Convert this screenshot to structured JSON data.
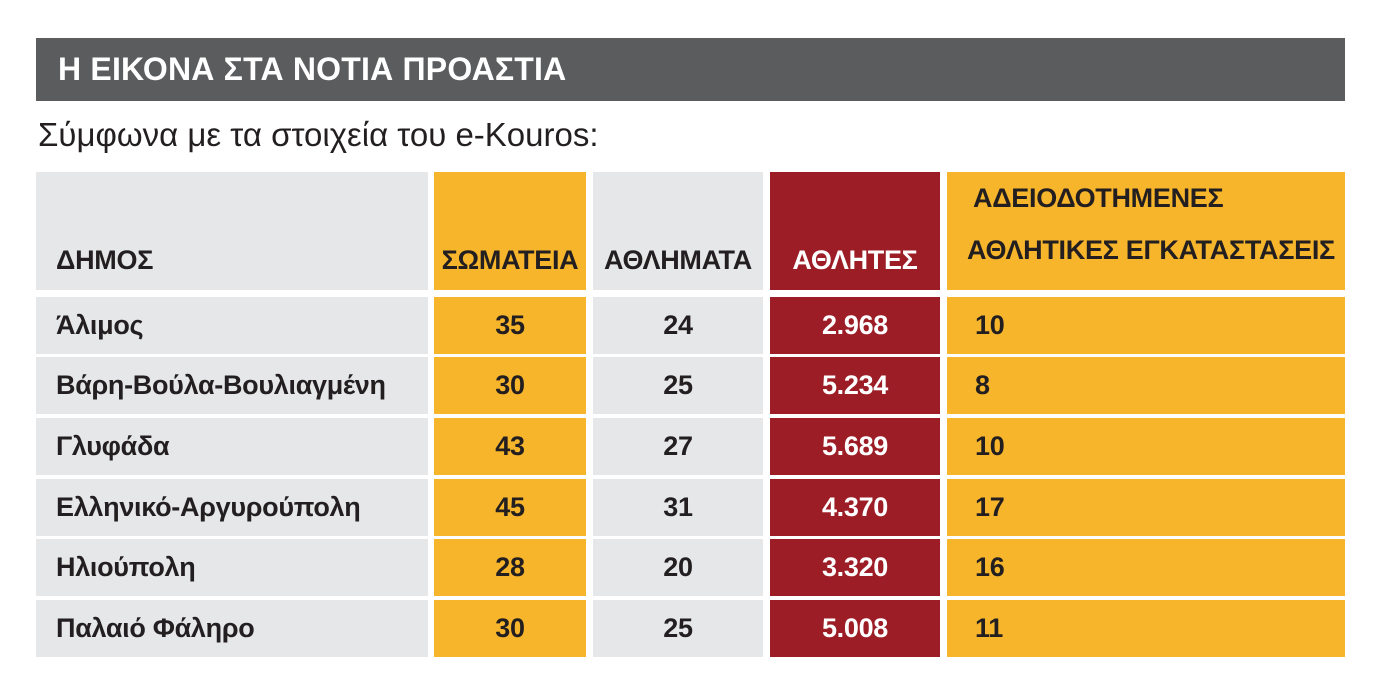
{
  "title": "Η ΕΙΚΟΝΑ ΣΤΑ ΝΟΤΙΑ ΠΡΟΑΣΤΙΑ",
  "subtitle": "Σύμφωνα με τα στοιχεία του e-Kouros:",
  "colors": {
    "title_bg": "#5b5c5e",
    "gray": "#e6e7e8",
    "yellow": "#f7b52c",
    "red": "#9c1d26"
  },
  "table": {
    "headers": {
      "dimos": "ΔΗΜΟΣ",
      "somateia": "ΣΩΜΑΤΕΙΑ",
      "athlimata": "ΑΘΛΗΜΑΤΑ",
      "athlites": "ΑΘΛΗΤΕΣ",
      "egkatastaseis_line1": "ΑΔΕΙΟΔΟΤΗΜΕΝΕΣ",
      "egkatastaseis_line2": "ΑΘΛΗΤΙΚΕΣ ΕΓΚΑΤΑΣΤΑΣΕΙΣ"
    },
    "rows": [
      {
        "dimos": "Άλιμος",
        "somateia": "35",
        "athlimata": "24",
        "athlites": "2.968",
        "egkatastaseis": "10"
      },
      {
        "dimos": "Βάρη-Βούλα-Βουλιαγμένη",
        "somateia": "30",
        "athlimata": "25",
        "athlites": "5.234",
        "egkatastaseis": "8"
      },
      {
        "dimos": "Γλυφάδα",
        "somateia": "43",
        "athlimata": "27",
        "athlites": "5.689",
        "egkatastaseis": "10"
      },
      {
        "dimos": "Ελληνικό-Αργυρούπολη",
        "somateia": "45",
        "athlimata": "31",
        "athlites": "4.370",
        "egkatastaseis": "17"
      },
      {
        "dimos": "Ηλιούπολη",
        "somateia": "28",
        "athlimata": "20",
        "athlites": "3.320",
        "egkatastaseis": "16"
      },
      {
        "dimos": "Παλαιό Φάληρο",
        "somateia": "30",
        "athlimata": "25",
        "athlites": "5.008",
        "egkatastaseis": "11"
      }
    ]
  }
}
